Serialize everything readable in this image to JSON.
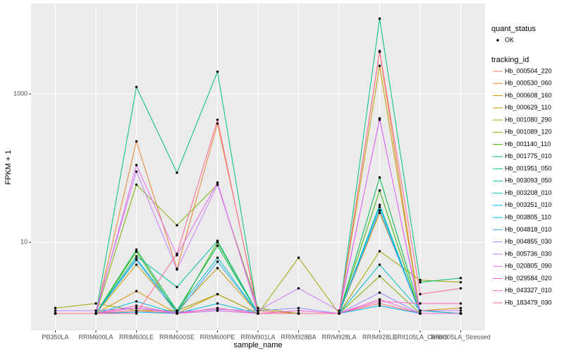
{
  "chart_data": {
    "type": "line",
    "x_label": "sample_name",
    "y_label": "FPKM + 1",
    "log_y": true,
    "grid": true,
    "point_color": "#000000",
    "point_legend_title": "quant_status",
    "point_legend_entries": [
      "OK"
    ],
    "legend_title": "tracking_id",
    "categories": [
      "PB350LA",
      "RRIM600LA",
      "RRIM600LE",
      "RRIM600SE",
      "RRIM600PE",
      "RRIM901LA",
      "RRIM928BA",
      "RRIM928LA",
      "RRIM928LE",
      "RRII105LA_Control",
      "RRII105LA_Stressed"
    ],
    "ylim": [
      0.65,
      16600
    ],
    "yticks": [
      10,
      1000
    ],
    "series": [
      {
        "name": "Hb_000504_220",
        "color": "#F8766D",
        "values": [
          1.1,
          1.1,
          1.2,
          1.1,
          1.3,
          1.1,
          1.1,
          1.1,
          1.5,
          1.1,
          1.1
        ]
      },
      {
        "name": "Hb_000530_060",
        "color": "#EA8331",
        "values": [
          1.1,
          1.1,
          230,
          4.4,
          400,
          1.2,
          1.1,
          1.1,
          3700,
          1.1,
          1.1
        ]
      },
      {
        "name": "Hb_000608_160",
        "color": "#D89000",
        "values": [
          1.1,
          1.1,
          2.2,
          1.1,
          2.0,
          1.1,
          1.1,
          1.1,
          25,
          1.2,
          1.3
        ]
      },
      {
        "name": "Hb_000629_110",
        "color": "#C09B00",
        "values": [
          1.1,
          1.1,
          5,
          1.2,
          4.5,
          1.1,
          1.1,
          1.1,
          2400,
          1.1,
          1.1
        ]
      },
      {
        "name": "Hb_001080_290",
        "color": "#A3A500",
        "values": [
          1.3,
          1.5,
          1.2,
          1.2,
          2.0,
          1.1,
          6.2,
          1.1,
          7.6,
          3.1,
          2.9
        ]
      },
      {
        "name": "Hb_001089_120",
        "color": "#7CAE00",
        "values": [
          1.1,
          1.1,
          60,
          17,
          60,
          1.3,
          1.1,
          1.1,
          3.5,
          1.1,
          1.1
        ]
      },
      {
        "name": "Hb_001140_110",
        "color": "#39B600",
        "values": [
          1.1,
          1.1,
          7.5,
          1.1,
          10,
          1.1,
          1.1,
          1.1,
          50,
          1.1,
          1.1
        ]
      },
      {
        "name": "Hb_001775_010",
        "color": "#00BB4E",
        "values": [
          1.1,
          1.1,
          8,
          1.2,
          9,
          1.1,
          1.1,
          1.1,
          75,
          1.2,
          1.1
        ]
      },
      {
        "name": "Hb_001951_050",
        "color": "#00BF7D",
        "values": [
          1.1,
          1.1,
          1245,
          87,
          2000,
          1.1,
          1.1,
          1.1,
          10400,
          2.9,
          3.3
        ]
      },
      {
        "name": "Hb_003093_050",
        "color": "#00C1A3",
        "values": [
          1.1,
          1.1,
          6.5,
          2.5,
          10.5,
          1.1,
          1.1,
          1.1,
          32,
          1.1,
          1.1
        ]
      },
      {
        "name": "Hb_003208_010",
        "color": "#00BFC4",
        "values": [
          1.1,
          1.1,
          6,
          1.2,
          6.2,
          1.1,
          1.1,
          1.1,
          5,
          1.2,
          1.1
        ]
      },
      {
        "name": "Hb_003251_010",
        "color": "#00BAE0",
        "values": [
          1.1,
          1.1,
          1.6,
          1.1,
          1.5,
          1.1,
          1.1,
          1.1,
          30,
          1.1,
          1.1
        ]
      },
      {
        "name": "Hb_003805_110",
        "color": "#00B0F6",
        "values": [
          1.1,
          1.1,
          1.15,
          1.1,
          1.2,
          1.1,
          1.1,
          1.1,
          1.4,
          1.1,
          1.1
        ]
      },
      {
        "name": "Hb_004818_010",
        "color": "#35A2FF",
        "values": [
          1.1,
          1.1,
          5.8,
          1.1,
          5.5,
          1.1,
          1.1,
          1.1,
          27,
          1.1,
          1.1
        ]
      },
      {
        "name": "Hb_004855_030",
        "color": "#9590FF",
        "values": [
          1.2,
          1.2,
          1.3,
          1.15,
          1.25,
          1.2,
          1.3,
          1.1,
          2.1,
          1.1,
          1.1
        ]
      },
      {
        "name": "Hb_005736_030",
        "color": "#C77CFF",
        "values": [
          1.2,
          1.2,
          90,
          4.3,
          60,
          1.2,
          2.4,
          1.2,
          450,
          1.2,
          1.2
        ]
      },
      {
        "name": "Hb_020805_090",
        "color": "#E76BF3",
        "values": [
          1.1,
          1.1,
          110,
          6.7,
          64,
          1.1,
          1.1,
          1.1,
          470,
          1.1,
          1.1
        ]
      },
      {
        "name": "Hb_029584_020",
        "color": "#FA62DB",
        "values": [
          1.1,
          1.1,
          1.3,
          1.1,
          1.2,
          1.1,
          1.2,
          1.1,
          1.7,
          1.1,
          1.1
        ]
      },
      {
        "name": "Hb_043327_010",
        "color": "#FF62BC",
        "values": [
          1.1,
          1.1,
          1.4,
          1.1,
          1.3,
          1.1,
          1.1,
          1.1,
          1.6,
          1.5,
          1.5
        ]
      },
      {
        "name": "Hb_183479_030",
        "color": "#FF6C91",
        "values": [
          1.1,
          1.1,
          1.1,
          7,
          450,
          1.1,
          1.1,
          1.1,
          3800,
          2.0,
          2.4
        ]
      }
    ]
  }
}
